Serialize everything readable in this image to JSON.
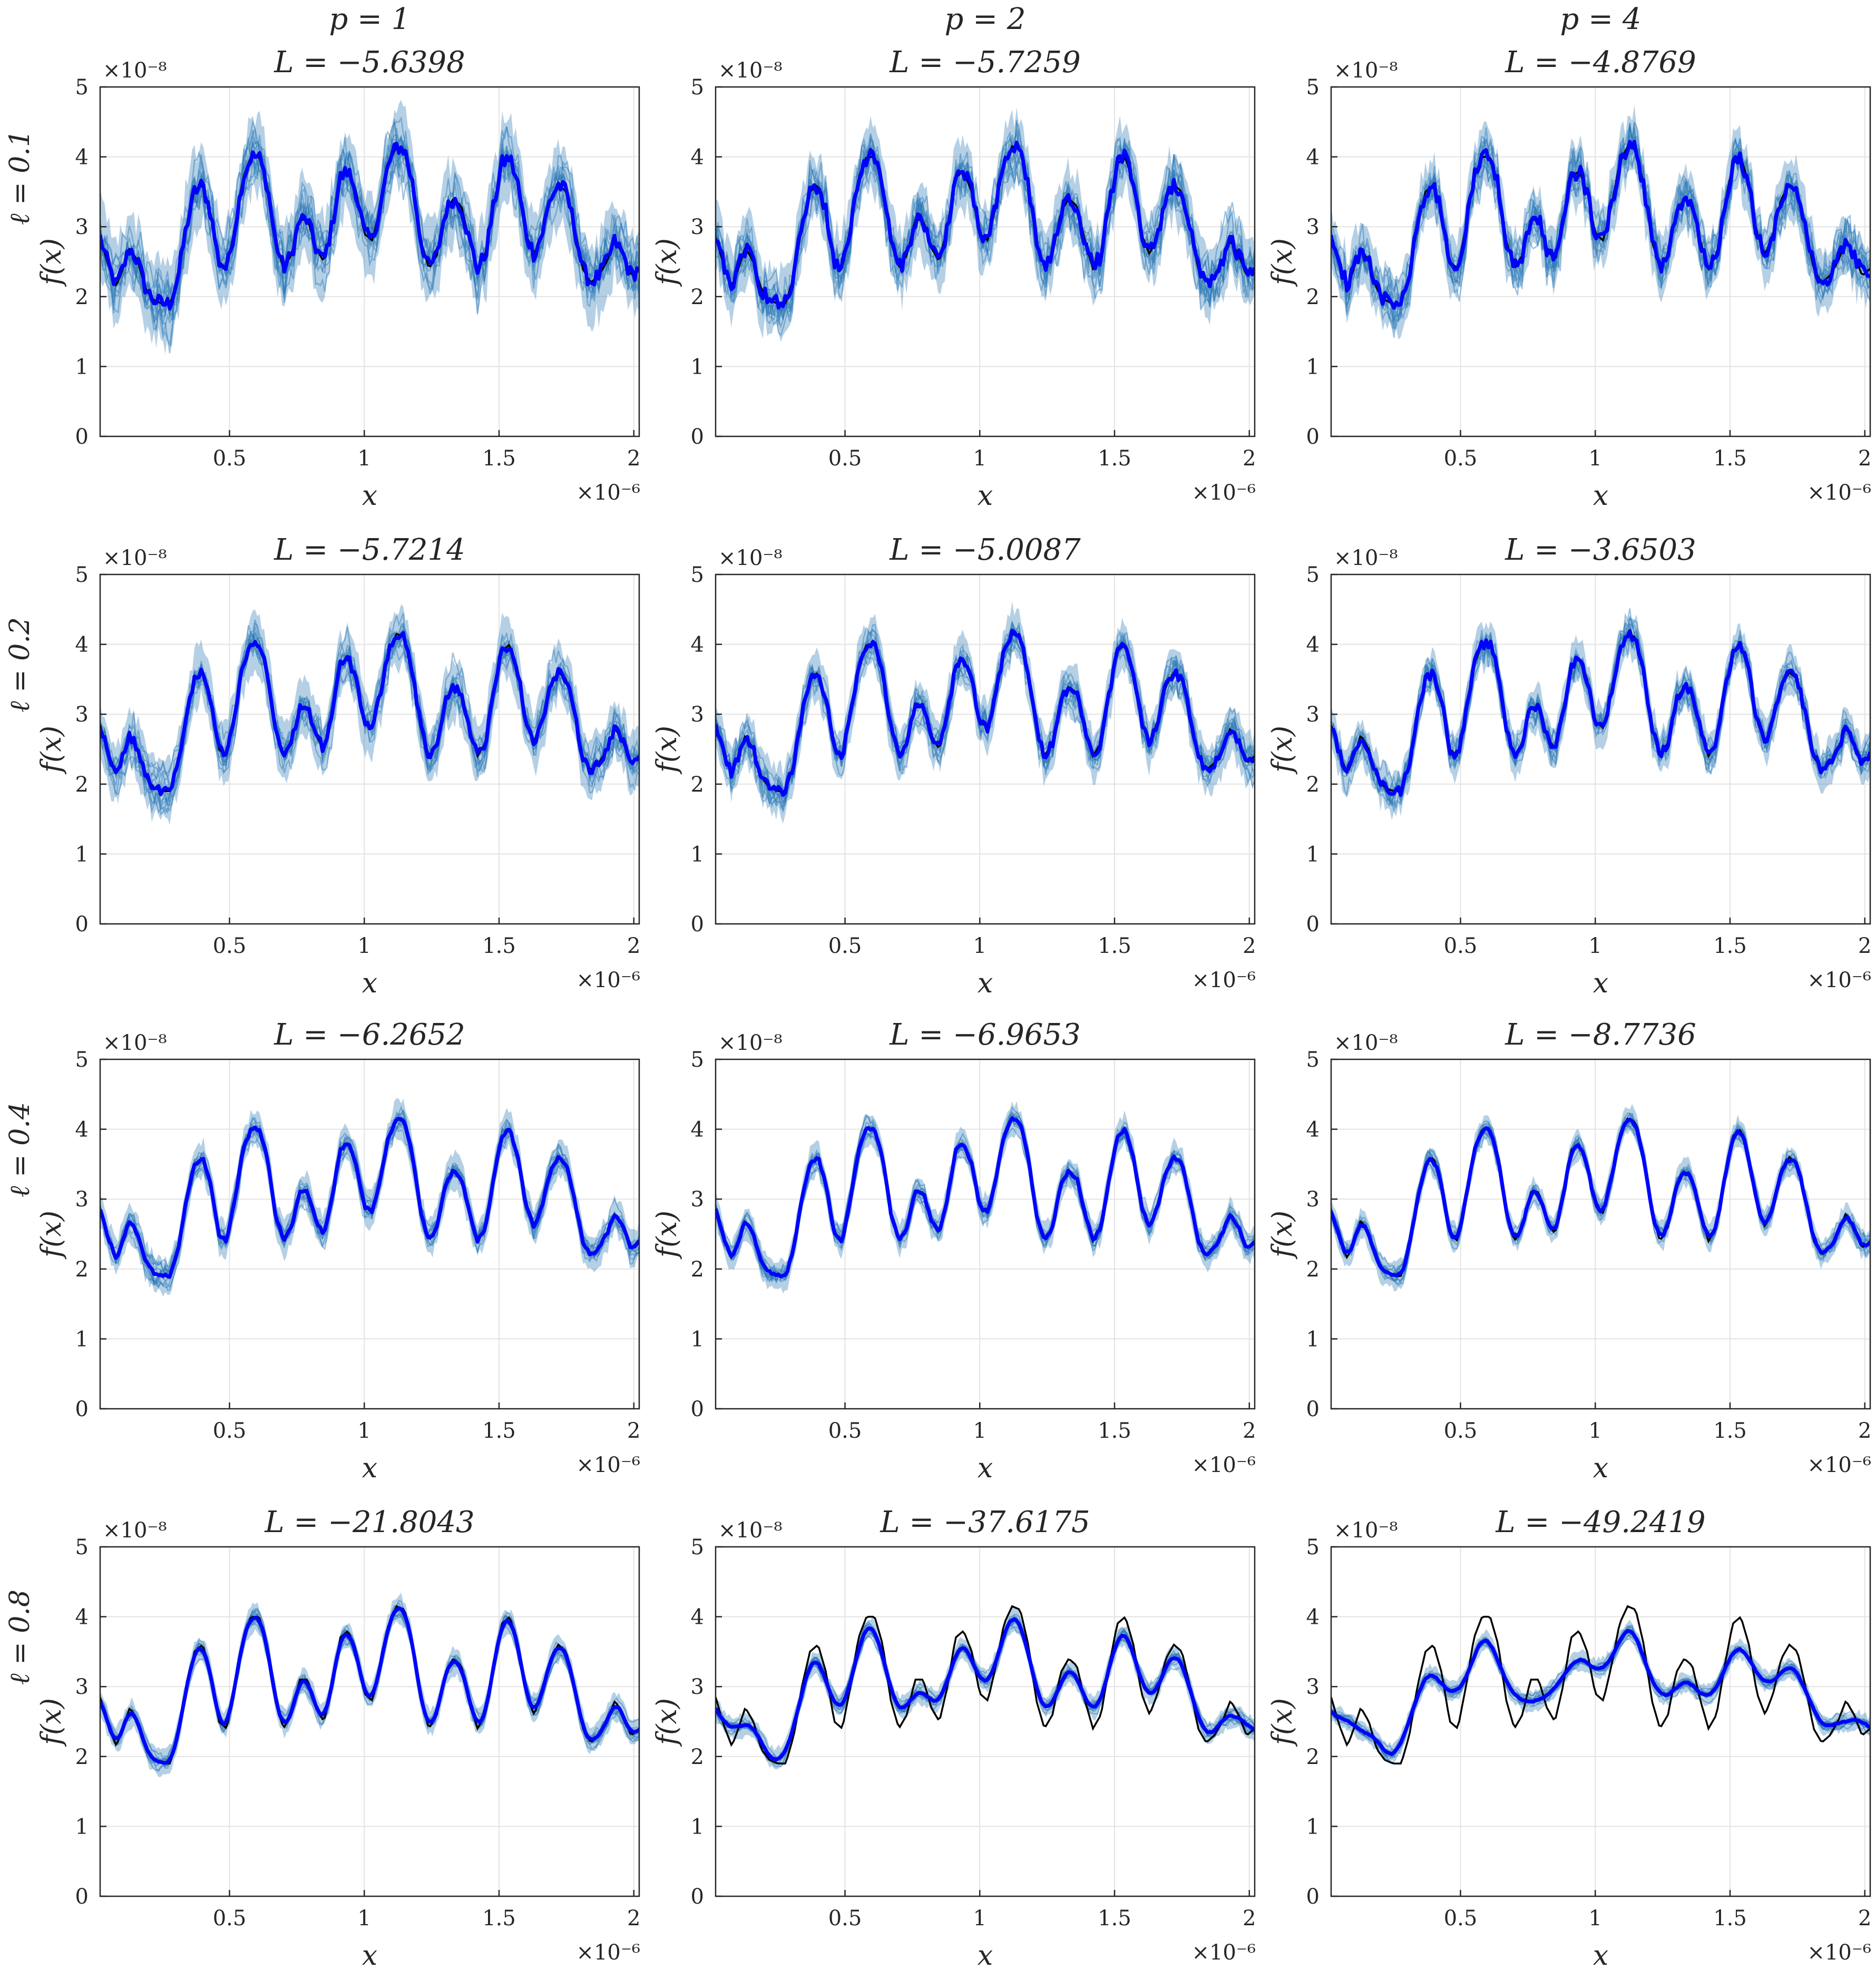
{
  "figure": {
    "column_headers": [
      "p = 1",
      "p = 2",
      "p = 4"
    ],
    "row_labels": [
      "ℓ = 0.1",
      "ℓ = 0.2",
      "ℓ = 0.4",
      "ℓ = 0.8"
    ],
    "ylabel": "f(x)",
    "xlabel": "x",
    "y_exponent": "×10⁻⁸",
    "x_exponent": "×10⁻⁶"
  },
  "colors": {
    "samples": "#2a77b5",
    "posterior_mean": "#0000ff",
    "true_function": "#000000",
    "grid": "#e3e3e3",
    "axes": "#262626"
  },
  "chart_data": [
    {
      "type": "line",
      "title": "L = −5.6398",
      "length_scale": 0.1,
      "p": 1,
      "xlim": [
        0.02,
        2.02
      ],
      "ylim": [
        0,
        5
      ],
      "xticks": [
        0.5,
        1,
        1.5,
        2
      ],
      "yticks": [
        0,
        1,
        2,
        3,
        4,
        5
      ],
      "grid": true
    },
    {
      "type": "line",
      "title": "L = −5.7259",
      "length_scale": 0.1,
      "p": 2,
      "xlim": [
        0.02,
        2.02
      ],
      "ylim": [
        0,
        5
      ],
      "xticks": [
        0.5,
        1,
        1.5,
        2
      ],
      "yticks": [
        0,
        1,
        2,
        3,
        4,
        5
      ],
      "grid": true
    },
    {
      "type": "line",
      "title": "L = −4.8769",
      "length_scale": 0.1,
      "p": 4,
      "xlim": [
        0.02,
        2.02
      ],
      "ylim": [
        0,
        5
      ],
      "xticks": [
        0.5,
        1,
        1.5,
        2
      ],
      "yticks": [
        0,
        1,
        2,
        3,
        4,
        5
      ],
      "grid": true
    },
    {
      "type": "line",
      "title": "L = −5.7214",
      "length_scale": 0.2,
      "p": 1,
      "xlim": [
        0.02,
        2.02
      ],
      "ylim": [
        0,
        5
      ],
      "xticks": [
        0.5,
        1,
        1.5,
        2
      ],
      "yticks": [
        0,
        1,
        2,
        3,
        4,
        5
      ],
      "grid": true
    },
    {
      "type": "line",
      "title": "L = −5.0087",
      "length_scale": 0.2,
      "p": 2,
      "xlim": [
        0.02,
        2.02
      ],
      "ylim": [
        0,
        5
      ],
      "xticks": [
        0.5,
        1,
        1.5,
        2
      ],
      "yticks": [
        0,
        1,
        2,
        3,
        4,
        5
      ],
      "grid": true
    },
    {
      "type": "line",
      "title": "L = −3.6503",
      "length_scale": 0.2,
      "p": 4,
      "xlim": [
        0.02,
        2.02
      ],
      "ylim": [
        0,
        5
      ],
      "xticks": [
        0.5,
        1,
        1.5,
        2
      ],
      "yticks": [
        0,
        1,
        2,
        3,
        4,
        5
      ],
      "grid": true
    },
    {
      "type": "line",
      "title": "L = −6.2652",
      "length_scale": 0.4,
      "p": 1,
      "xlim": [
        0.02,
        2.02
      ],
      "ylim": [
        0,
        5
      ],
      "xticks": [
        0.5,
        1,
        1.5,
        2
      ],
      "yticks": [
        0,
        1,
        2,
        3,
        4,
        5
      ],
      "grid": true
    },
    {
      "type": "line",
      "title": "L = −6.9653",
      "length_scale": 0.4,
      "p": 2,
      "xlim": [
        0.02,
        2.02
      ],
      "ylim": [
        0,
        5
      ],
      "xticks": [
        0.5,
        1,
        1.5,
        2
      ],
      "yticks": [
        0,
        1,
        2,
        3,
        4,
        5
      ],
      "grid": true
    },
    {
      "type": "line",
      "title": "L = −8.7736",
      "length_scale": 0.4,
      "p": 4,
      "xlim": [
        0.02,
        2.02
      ],
      "ylim": [
        0,
        5
      ],
      "xticks": [
        0.5,
        1,
        1.5,
        2
      ],
      "yticks": [
        0,
        1,
        2,
        3,
        4,
        5
      ],
      "grid": true
    },
    {
      "type": "line",
      "title": "L = −21.8043",
      "length_scale": 0.8,
      "p": 1,
      "xlim": [
        0.02,
        2.02
      ],
      "ylim": [
        0,
        5
      ],
      "xticks": [
        0.5,
        1,
        1.5,
        2
      ],
      "yticks": [
        0,
        1,
        2,
        3,
        4,
        5
      ],
      "grid": true
    },
    {
      "type": "line",
      "title": "L = −37.6175",
      "length_scale": 0.8,
      "p": 2,
      "xlim": [
        0.02,
        2.02
      ],
      "ylim": [
        0,
        5
      ],
      "xticks": [
        0.5,
        1,
        1.5,
        2
      ],
      "yticks": [
        0,
        1,
        2,
        3,
        4,
        5
      ],
      "grid": true
    },
    {
      "type": "line",
      "title": "L = −49.2419",
      "length_scale": 0.8,
      "p": 4,
      "xlim": [
        0.02,
        2.02
      ],
      "ylim": [
        0,
        5
      ],
      "xticks": [
        0.5,
        1,
        1.5,
        2
      ],
      "yticks": [
        0,
        1,
        2,
        3,
        4,
        5
      ],
      "grid": true
    }
  ],
  "true_function": {
    "x": [
      0.02,
      0.05,
      0.08,
      0.1,
      0.13,
      0.16,
      0.19,
      0.22,
      0.25,
      0.28,
      0.31,
      0.34,
      0.37,
      0.4,
      0.43,
      0.46,
      0.49,
      0.52,
      0.55,
      0.58,
      0.61,
      0.64,
      0.67,
      0.7,
      0.73,
      0.76,
      0.79,
      0.82,
      0.85,
      0.88,
      0.91,
      0.94,
      0.97,
      1.0,
      1.03,
      1.06,
      1.09,
      1.12,
      1.15,
      1.18,
      1.21,
      1.24,
      1.27,
      1.3,
      1.33,
      1.36,
      1.39,
      1.42,
      1.45,
      1.48,
      1.51,
      1.54,
      1.57,
      1.6,
      1.63,
      1.66,
      1.69,
      1.72,
      1.75,
      1.78,
      1.81,
      1.84,
      1.87,
      1.9,
      1.93,
      1.96,
      1.99,
      2.02
    ],
    "y": [
      2.85,
      2.45,
      2.15,
      2.35,
      2.7,
      2.5,
      2.1,
      1.95,
      1.9,
      1.9,
      2.3,
      3.0,
      3.5,
      3.6,
      3.2,
      2.5,
      2.4,
      3.0,
      3.7,
      4.0,
      4.0,
      3.6,
      2.8,
      2.4,
      2.6,
      3.1,
      3.1,
      2.7,
      2.5,
      3.0,
      3.7,
      3.8,
      3.5,
      2.9,
      2.8,
      3.3,
      3.9,
      4.15,
      4.1,
      3.6,
      2.8,
      2.4,
      2.6,
      3.2,
      3.4,
      3.3,
      2.8,
      2.4,
      2.6,
      3.3,
      3.9,
      4.0,
      3.6,
      2.9,
      2.6,
      2.9,
      3.4,
      3.6,
      3.5,
      3.0,
      2.4,
      2.2,
      2.3,
      2.5,
      2.8,
      2.6,
      2.3,
      2.4
    ]
  }
}
